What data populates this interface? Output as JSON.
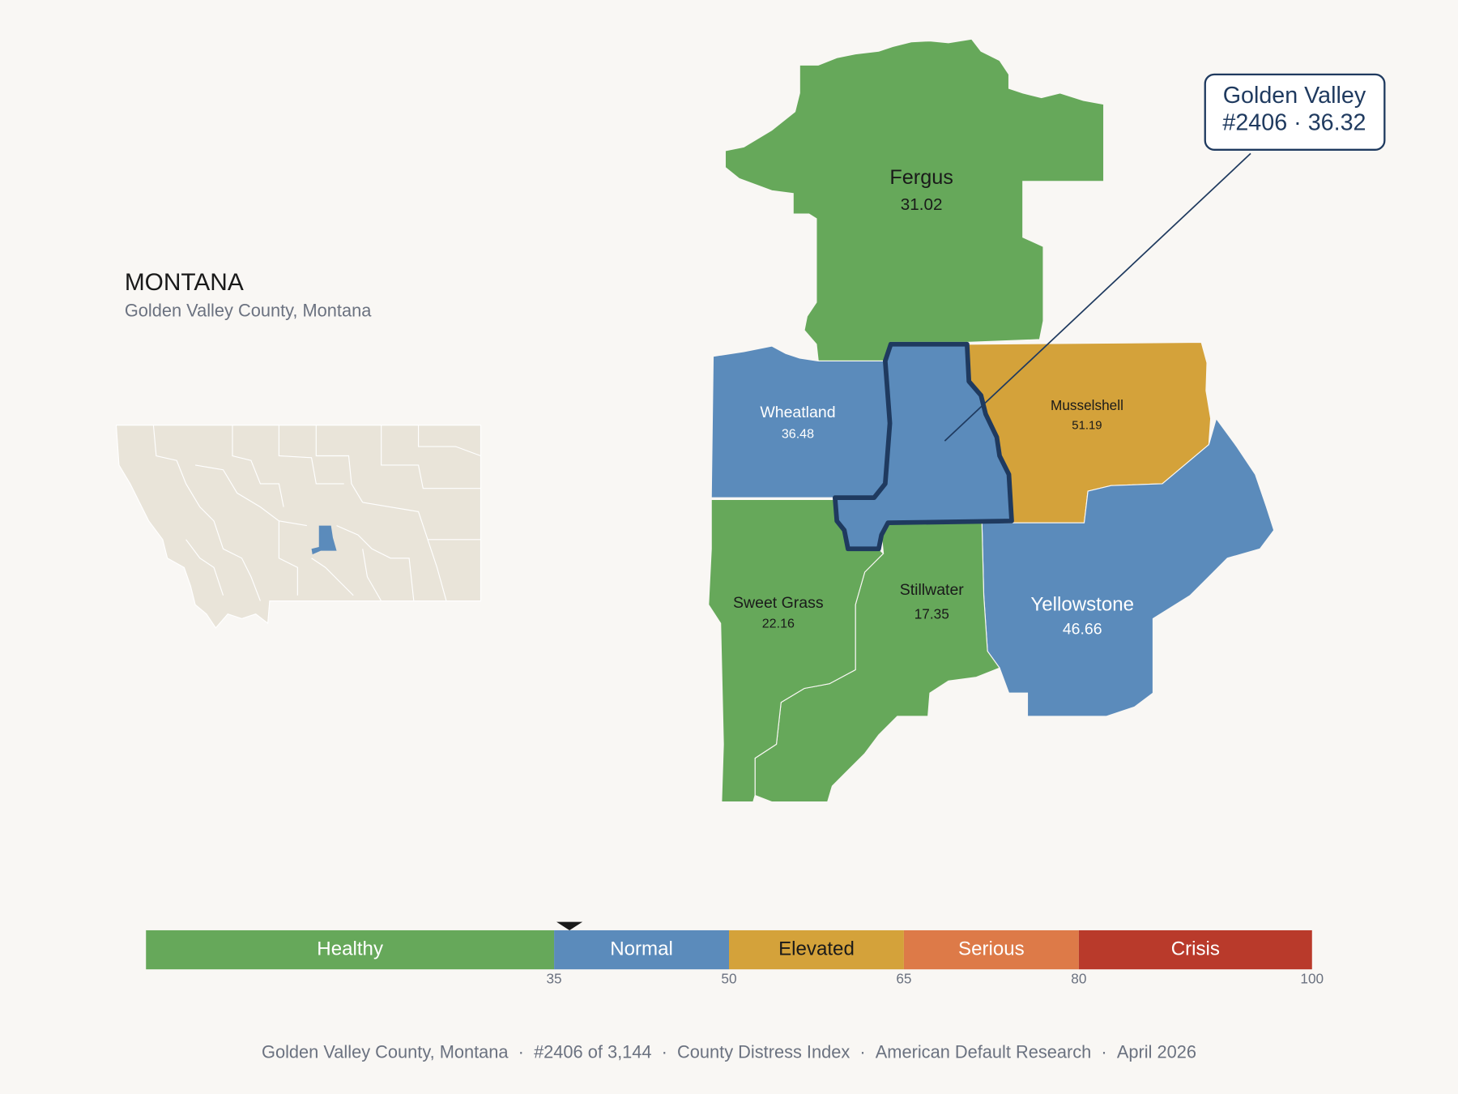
{
  "header": {
    "title": "MONTANA",
    "subtitle": "Golden Valley County, Montana"
  },
  "selected": {
    "name": "Golden Valley",
    "rank": "#2406",
    "separator": "·",
    "value": 36.32
  },
  "counties": [
    {
      "name": "Fergus",
      "value": 31.02
    },
    {
      "name": "Wheatland",
      "value": 36.48
    },
    {
      "name": "Musselshell",
      "value": 51.19
    },
    {
      "name": "Yellowstone",
      "value": 46.66
    },
    {
      "name": "Stillwater",
      "value": 17.35
    },
    {
      "name": "Sweet Grass",
      "value": 22.16
    }
  ],
  "scale": {
    "xlim": [
      0,
      100
    ],
    "ticks": [
      35,
      50,
      65,
      80,
      100
    ],
    "bands": [
      {
        "name": "Healthy",
        "color": "#66a85a",
        "text_color": "#ffffff"
      },
      {
        "name": "Normal",
        "color": "#5b8bbb",
        "text_color": "#ffffff"
      },
      {
        "name": "Elevated",
        "color": "#d4a23a",
        "text_color": "#1a1a1a"
      },
      {
        "name": "Serious",
        "color": "#dd7a48",
        "text_color": "#ffffff"
      },
      {
        "name": "Crisis",
        "color": "#b93a2b",
        "text_color": "#ffffff"
      }
    ]
  },
  "footer": {
    "separator": "·",
    "items": [
      "Golden Valley County, Montana",
      "#2406 of 3,144",
      "County Distress Index",
      "American Default Research",
      "April 2026"
    ]
  }
}
